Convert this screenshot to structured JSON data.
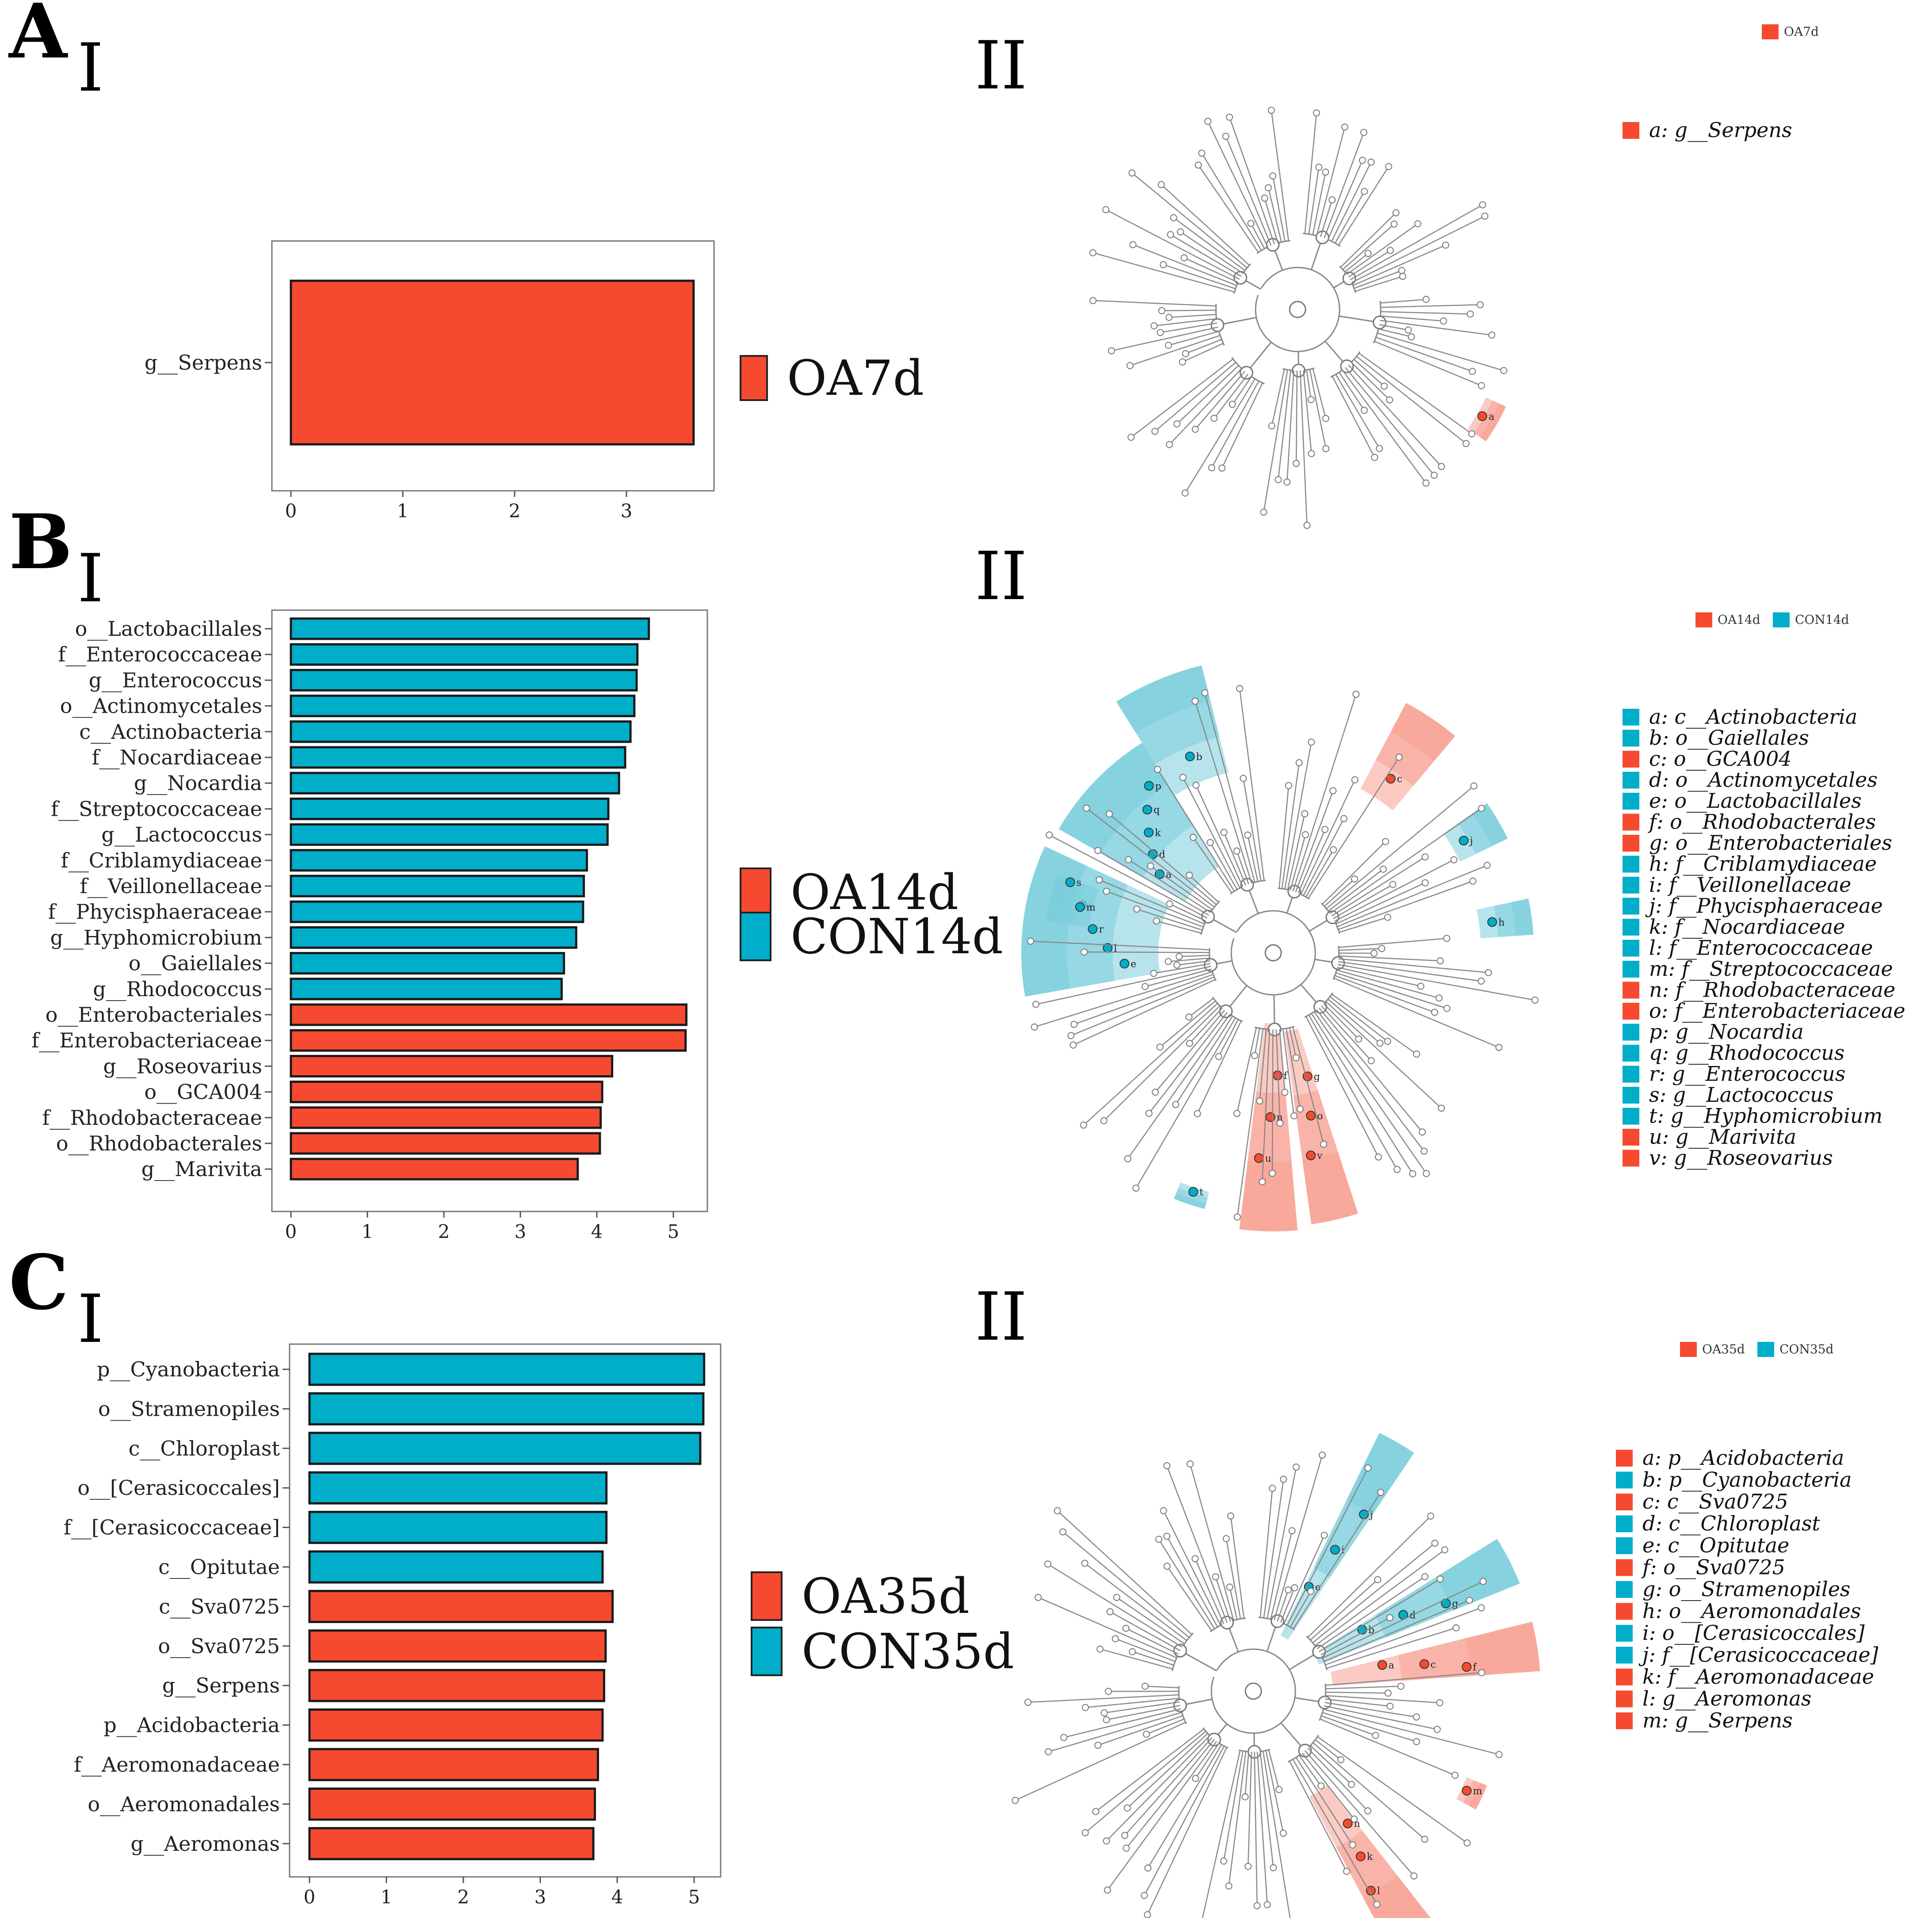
{
  "colors": {
    "oa": "#F64A30",
    "con": "#00AECA",
    "oa_light": "#F7A092",
    "con_light": "#7CCDDC"
  },
  "panel_labels": [
    "A",
    "B",
    "C"
  ],
  "sub_labels": {
    "bar": "I",
    "tree": "II"
  },
  "chart_data": [
    {
      "type": "bar",
      "panel": "A-I",
      "orientation": "horizontal",
      "categories": [
        "g__Serpens"
      ],
      "values": [
        3.6
      ],
      "groups": [
        "OA7d"
      ],
      "xlim": [
        0,
        3.8
      ],
      "xticks": [
        0,
        1,
        2,
        3
      ],
      "legend": [
        "OA7d"
      ],
      "title": "",
      "xlabel": "",
      "ylabel": ""
    },
    {
      "type": "bar",
      "panel": "B-I",
      "orientation": "horizontal",
      "categories": [
        "o__Lactobacillales",
        "f__Enterococcaceae",
        "g__Enterococcus",
        "o__Actinomycetales",
        "c__Actinobacteria",
        "f__Nocardiaceae",
        "g__Nocardia",
        "f__Streptococcaceae",
        "g__Lactococcus",
        "f__Criblamydiaceae",
        "f__Veillonellaceae",
        "f__Phycisphaeraceae",
        "g__Hyphomicrobium",
        "o__Gaiellales",
        "g__Rhodococcus",
        "o__Enterobacteriales",
        "f__Enterobacteriaceae",
        "g__Roseovarius",
        "o__GCA004",
        "f__Rhodobacteraceae",
        "o__Rhodobacterales",
        "g__Marivita"
      ],
      "values": [
        4.68,
        4.53,
        4.52,
        4.49,
        4.44,
        4.37,
        4.29,
        4.15,
        4.14,
        3.87,
        3.83,
        3.82,
        3.73,
        3.57,
        3.54,
        5.17,
        5.16,
        4.2,
        4.07,
        4.05,
        4.04,
        3.75
      ],
      "groups": [
        "CON14d",
        "CON14d",
        "CON14d",
        "CON14d",
        "CON14d",
        "CON14d",
        "CON14d",
        "CON14d",
        "CON14d",
        "CON14d",
        "CON14d",
        "CON14d",
        "CON14d",
        "CON14d",
        "CON14d",
        "OA14d",
        "OA14d",
        "OA14d",
        "OA14d",
        "OA14d",
        "OA14d",
        "OA14d"
      ],
      "xlim": [
        0,
        5.4
      ],
      "xticks": [
        0,
        1,
        2,
        3,
        4,
        5
      ],
      "legend": [
        "OA14d",
        "CON14d"
      ],
      "title": "",
      "xlabel": "",
      "ylabel": ""
    },
    {
      "type": "bar",
      "panel": "C-I",
      "orientation": "horizontal",
      "categories": [
        "p__Cyanobacteria",
        "o__Stramenopiles",
        "c__Chloroplast",
        "o__[Cerasicoccales]",
        "f__[Cerasicoccaceae]",
        "c__Opitutae",
        "c__Sva0725",
        "o__Sva0725",
        "g__Serpens",
        "p__Acidobacteria",
        "f__Aeromonadaceae",
        "o__Aeromonadales",
        "g__Aeromonas"
      ],
      "values": [
        5.13,
        5.12,
        5.08,
        3.86,
        3.86,
        3.81,
        3.94,
        3.85,
        3.83,
        3.81,
        3.75,
        3.71,
        3.69
      ],
      "groups": [
        "CON35d",
        "CON35d",
        "CON35d",
        "CON35d",
        "CON35d",
        "CON35d",
        "OA35d",
        "OA35d",
        "OA35d",
        "OA35d",
        "OA35d",
        "OA35d",
        "OA35d"
      ],
      "xlim": [
        0,
        5.3
      ],
      "xticks": [
        0,
        1,
        2,
        3,
        4,
        5
      ],
      "legend": [
        "OA35d",
        "CON35d"
      ],
      "title": "",
      "xlabel": "",
      "ylabel": ""
    }
  ],
  "cladograms": [
    {
      "panel": "A-II",
      "groups": [
        {
          "name": "OA7d",
          "color": "oa"
        }
      ],
      "key": [
        {
          "text": "a: g__Serpens",
          "group": "OA7d"
        }
      ],
      "highlights": [
        {
          "letters": [
            "a"
          ],
          "group": "OA7d"
        }
      ]
    },
    {
      "panel": "B-II",
      "groups": [
        {
          "name": "OA14d",
          "color": "oa"
        },
        {
          "name": "CON14d",
          "color": "con"
        }
      ],
      "key": [
        {
          "text": "a: c__Actinobacteria",
          "group": "CON14d"
        },
        {
          "text": "b: o__Gaiellales",
          "group": "CON14d"
        },
        {
          "text": "c: o__GCA004",
          "group": "OA14d"
        },
        {
          "text": "d: o__Actinomycetales",
          "group": "CON14d"
        },
        {
          "text": "e: o__Lactobacillales",
          "group": "CON14d"
        },
        {
          "text": "f: o__Rhodobacterales",
          "group": "OA14d"
        },
        {
          "text": "g: o__Enterobacteriales",
          "group": "OA14d"
        },
        {
          "text": "h: f__Criblamydiaceae",
          "group": "CON14d"
        },
        {
          "text": "i: f__Veillonellaceae",
          "group": "CON14d"
        },
        {
          "text": "j: f__Phycisphaeraceae",
          "group": "CON14d"
        },
        {
          "text": "k: f__Nocardiaceae",
          "group": "CON14d"
        },
        {
          "text": "l: f__Enterococcaceae",
          "group": "CON14d"
        },
        {
          "text": "m: f__Streptococcaceae",
          "group": "CON14d"
        },
        {
          "text": "n: f__Rhodobacteraceae",
          "group": "OA14d"
        },
        {
          "text": "o: f__Enterobacteriaceae",
          "group": "OA14d"
        },
        {
          "text": "p: g__Nocardia",
          "group": "CON14d"
        },
        {
          "text": "q: g__Rhodococcus",
          "group": "CON14d"
        },
        {
          "text": "r: g__Enterococcus",
          "group": "CON14d"
        },
        {
          "text": "s: g__Lactococcus",
          "group": "CON14d"
        },
        {
          "text": "t: g__Hyphomicrobium",
          "group": "CON14d"
        },
        {
          "text": "u: g__Marivita",
          "group": "OA14d"
        },
        {
          "text": "v: g__Roseovarius",
          "group": "OA14d"
        }
      ],
      "highlights": [
        {
          "letters": [
            "b"
          ],
          "group": "CON14d"
        },
        {
          "letters": [
            "a",
            "d",
            "k",
            "q",
            "p"
          ],
          "group": "CON14d"
        },
        {
          "letters": [
            "c"
          ],
          "group": "OA14d"
        },
        {
          "letters": [
            "j"
          ],
          "group": "CON14d"
        },
        {
          "letters": [
            "h"
          ],
          "group": "CON14d"
        },
        {
          "letters": [
            "i"
          ],
          "group": "CON14d"
        },
        {
          "letters": [
            "e",
            "l",
            "r",
            "m",
            "s"
          ],
          "group": "CON14d"
        },
        {
          "letters": [
            "t"
          ],
          "group": "CON14d"
        },
        {
          "letters": [
            "f",
            "n",
            "u"
          ],
          "group": "OA14d"
        },
        {
          "letters": [
            "g",
            "o",
            "v"
          ],
          "group": "OA14d"
        }
      ]
    },
    {
      "panel": "C-II",
      "groups": [
        {
          "name": "OA35d",
          "color": "oa"
        },
        {
          "name": "CON35d",
          "color": "con"
        }
      ],
      "key": [
        {
          "text": "a: p__Acidobacteria",
          "group": "OA35d"
        },
        {
          "text": "b: p__Cyanobacteria",
          "group": "CON35d"
        },
        {
          "text": "c: c__Sva0725",
          "group": "OA35d"
        },
        {
          "text": "d: c__Chloroplast",
          "group": "CON35d"
        },
        {
          "text": "e: c__Opitutae",
          "group": "CON35d"
        },
        {
          "text": "f: o__Sva0725",
          "group": "OA35d"
        },
        {
          "text": "g: o__Stramenopiles",
          "group": "CON35d"
        },
        {
          "text": "h: o__Aeromonadales",
          "group": "OA35d"
        },
        {
          "text": "i: o__[Cerasicoccales]",
          "group": "CON35d"
        },
        {
          "text": "j: f__[Cerasicoccaceae]",
          "group": "CON35d"
        },
        {
          "text": "k: f__Aeromonadaceae",
          "group": "OA35d"
        },
        {
          "text": "l: g__Aeromonas",
          "group": "OA35d"
        },
        {
          "text": "m: g__Serpens",
          "group": "OA35d"
        }
      ],
      "highlights": [
        {
          "letters": [
            "e",
            "i",
            "j"
          ],
          "group": "CON35d"
        },
        {
          "letters": [
            "b",
            "d",
            "g"
          ],
          "group": "CON35d"
        },
        {
          "letters": [
            "a",
            "c",
            "f"
          ],
          "group": "OA35d"
        },
        {
          "letters": [
            "m"
          ],
          "group": "OA35d"
        },
        {
          "letters": [
            "h",
            "k",
            "l"
          ],
          "group": "OA35d"
        }
      ]
    }
  ]
}
